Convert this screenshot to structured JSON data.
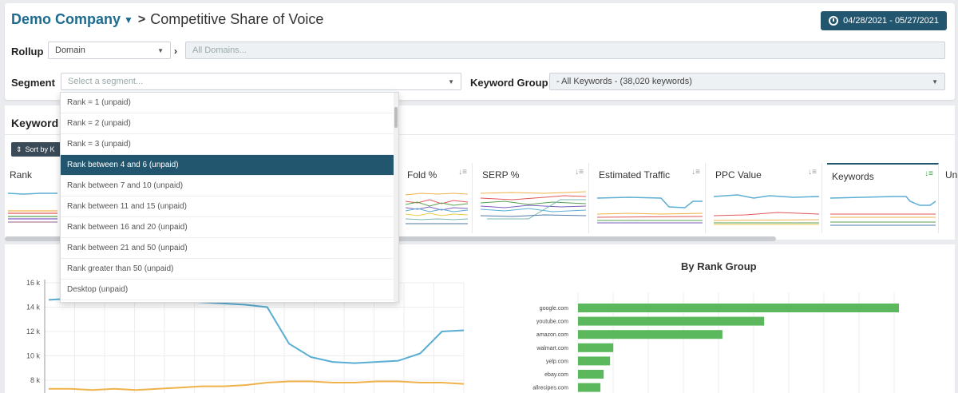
{
  "header": {
    "company": "Demo Company",
    "separator": ">",
    "title": "Competitive Share of Voice",
    "date_range": "04/28/2021 - 05/27/2021"
  },
  "filters": {
    "rollup_label": "Rollup",
    "rollup_value": "Domain",
    "domains_placeholder": "All Domains...",
    "segment_label": "Segment",
    "segment_placeholder": "Select a segment...",
    "keyword_group_label": "Keyword Group",
    "keyword_group_value": "- All Keywords - (38,020 keywords)"
  },
  "segment_options": [
    "Rank = 1 (unpaid)",
    "Rank = 2 (unpaid)",
    "Rank = 3 (unpaid)",
    "Rank between 4 and 6 (unpaid)",
    "Rank between 7 and 10 (unpaid)",
    "Rank between 11 and 15 (unpaid)",
    "Rank between 16 and 20 (unpaid)",
    "Rank between 21 and 50 (unpaid)",
    "Rank greater than 50 (unpaid)",
    "Desktop (unpaid)"
  ],
  "keywords_panel": {
    "title": "Keyword",
    "sort_button": "Sort by K",
    "metrics": [
      "Rank",
      "Fold %",
      "SERP %",
      "Estimated Traffic",
      "PPC Value",
      "Keywords",
      "Un"
    ]
  },
  "line_chart": {
    "y_ticks": [
      "16 k",
      "14 k",
      "12 k",
      "10 k",
      "8 k"
    ],
    "series": [
      {
        "color": "#5aaed3",
        "values": [
          14.6,
          14.7,
          14.7,
          14.6,
          14.5,
          14.6,
          14.5,
          14.4,
          14.3,
          14.2,
          14.0,
          11.0,
          9.9,
          9.5,
          9.4,
          9.5,
          9.6,
          10.2,
          12.0,
          12.1
        ]
      },
      {
        "color": "#f0b24a",
        "values": [
          7.3,
          7.3,
          7.2,
          7.3,
          7.2,
          7.3,
          7.4,
          7.5,
          7.5,
          7.6,
          7.8,
          7.9,
          7.9,
          7.8,
          7.8,
          7.9,
          7.9,
          7.8,
          7.8,
          7.7
        ]
      }
    ],
    "ylim": [
      7,
      16
    ]
  },
  "chart_data": {
    "type": "bar",
    "title": "By Rank Group",
    "categories": [
      "google.com",
      "youtube.com",
      "amazon.com",
      "walmart.com",
      "yelp.com",
      "ebay.com",
      "allrecipes.com"
    ],
    "values": [
      100,
      58,
      45,
      11,
      10,
      8,
      7
    ],
    "color": "#5cb85c",
    "grid": true
  },
  "colors": {
    "brand": "#1d6b8f",
    "highlight": "#22566e",
    "bar": "#5cb85c"
  }
}
